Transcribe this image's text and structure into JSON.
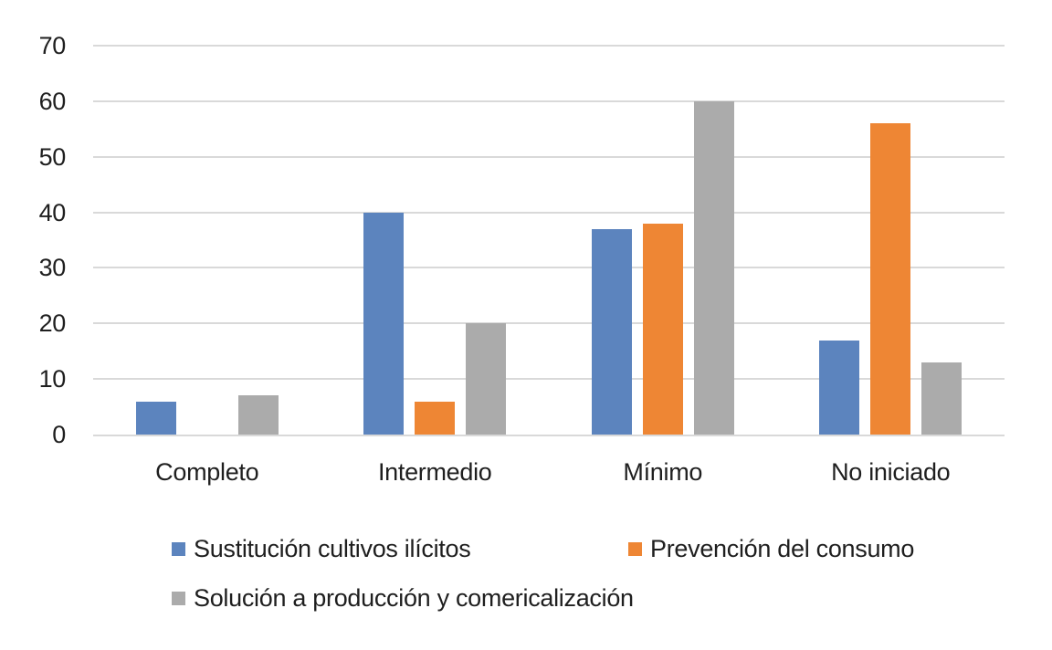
{
  "chart_data": {
    "type": "bar",
    "categories": [
      "Completo",
      "Intermedio",
      "Mínimo",
      "No iniciado"
    ],
    "series": [
      {
        "name": "Sustitución cultivos ilícitos",
        "color": "#5C84BE",
        "values": [
          6,
          40,
          37,
          17
        ]
      },
      {
        "name": "Prevención del consumo",
        "color": "#EE8634",
        "values": [
          0,
          6,
          38,
          56
        ]
      },
      {
        "name": "Solución a producción y comericalización",
        "color": "#ABABAB",
        "values": [
          7,
          20,
          60,
          13
        ]
      }
    ],
    "title": "",
    "xlabel": "",
    "ylabel": "",
    "ylim": [
      0,
      70
    ],
    "yticks": [
      0,
      10,
      20,
      30,
      40,
      50,
      60,
      70
    ],
    "grid": true,
    "legend_position": "bottom",
    "gridline_color": "#D9D9D9",
    "background": "#FFFFFF",
    "text_color": "#1f1f1f"
  }
}
